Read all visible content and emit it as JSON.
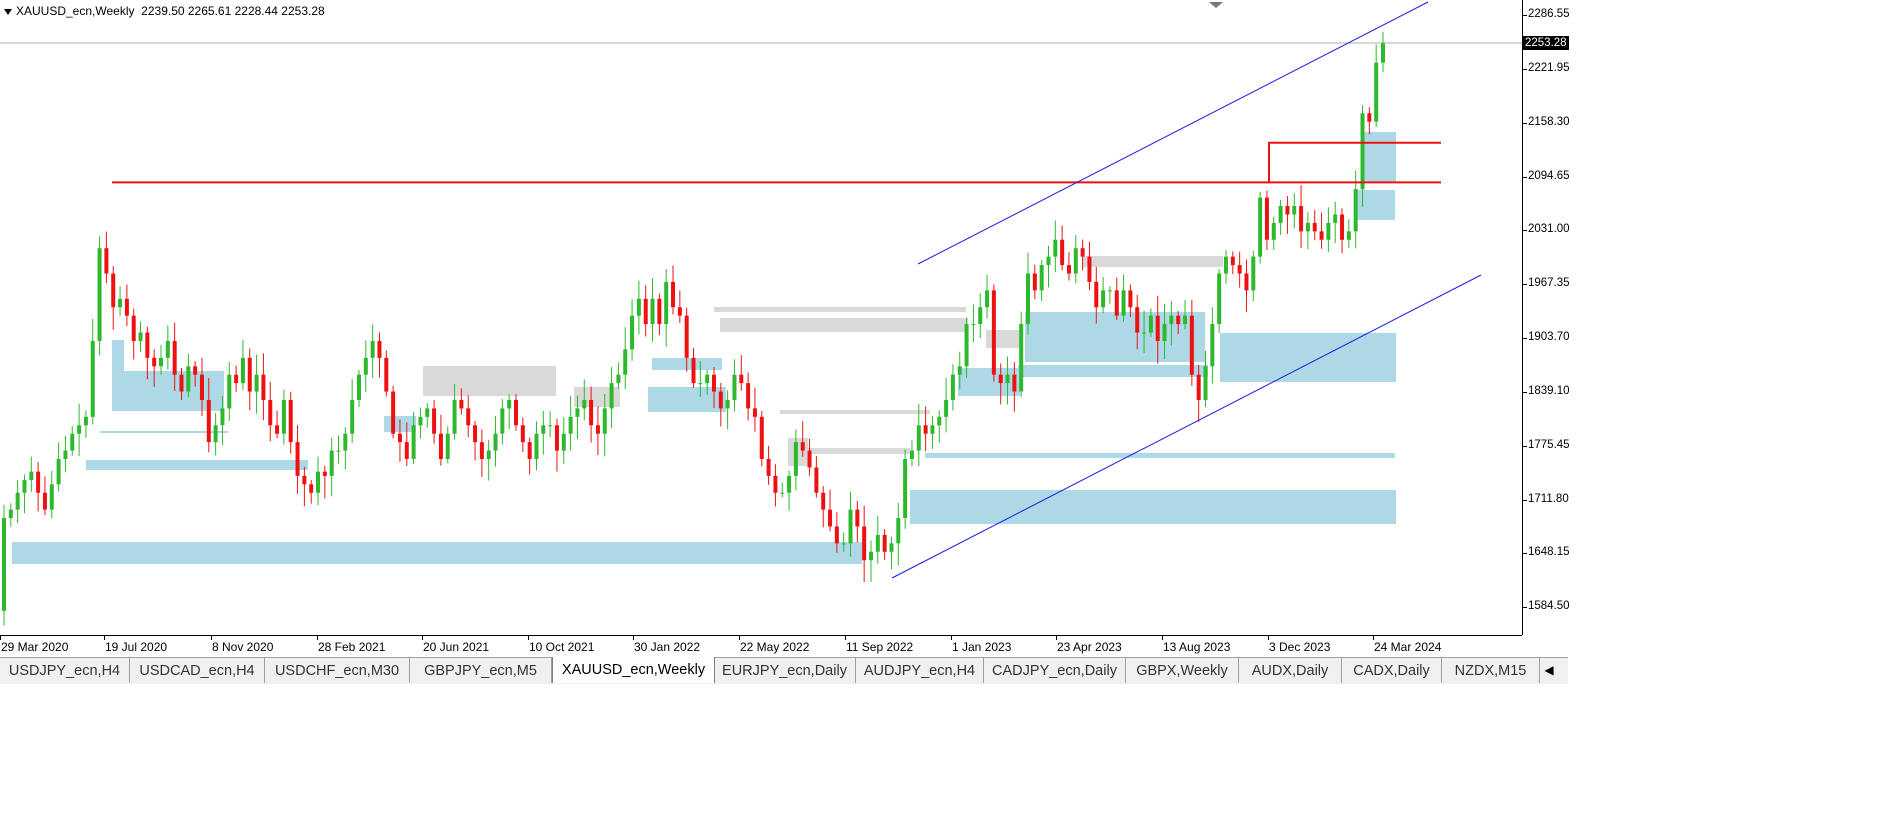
{
  "window": {
    "symbol_title": "XAUUSD_ecn,Weekly",
    "ohlc": "2239.50 2265.61 2228.44 2253.28"
  },
  "price_axis": {
    "labels": [
      "2286.55",
      "2221.95",
      "2158.30",
      "2094.65",
      "2031.00",
      "1967.35",
      "1903.70",
      "1839.10",
      "1775.45",
      "1711.80",
      "1648.15",
      "1584.50"
    ],
    "current_price": "2253.28"
  },
  "time_axis": {
    "labels": [
      "29 Mar 2020",
      "19 Jul 2020",
      "8 Nov 2020",
      "28 Feb 2021",
      "20 Jun 2021",
      "10 Oct 2021",
      "30 Jan 2022",
      "22 May 2022",
      "11 Sep 2022",
      "1 Jan 2023",
      "23 Apr 2023",
      "13 Aug 2023",
      "3 Dec 2023",
      "24 Mar 2024"
    ]
  },
  "tabs": [
    {
      "label": "USDJPY_ecn,H4",
      "active": false
    },
    {
      "label": "USDCAD_ecn,H4",
      "active": false
    },
    {
      "label": "USDCHF_ecn,M30",
      "active": false
    },
    {
      "label": "GBPJPY_ecn,M5",
      "active": false
    },
    {
      "label": "XAUUSD_ecn,Weekly",
      "active": true
    },
    {
      "label": "EURJPY_ecn,Daily",
      "active": false
    },
    {
      "label": "AUDJPY_ecn,H4",
      "active": false
    },
    {
      "label": "CADJPY_ecn,Daily",
      "active": false
    },
    {
      "label": "GBPX,Weekly",
      "active": false
    },
    {
      "label": "AUDX,Daily",
      "active": false
    },
    {
      "label": "CADX,Daily",
      "active": false
    },
    {
      "label": "NZDX,M15",
      "active": false
    }
  ],
  "colors": {
    "bull": "#2db82d",
    "bear": "#ee1111",
    "zone_blue": "#add8e6",
    "zone_gray": "#d9d9d9",
    "resistance": "#ee1111",
    "channel": "#1a1ae6"
  },
  "chart_data": {
    "type": "candlestick",
    "symbol": "XAUUSD_ecn",
    "timeframe": "Weekly",
    "ylim": [
      1560,
      2300
    ],
    "x_range": [
      "29 Mar 2020",
      "24 Mar 2024"
    ],
    "horizontal_levels": [
      2088,
      2135
    ],
    "close_series": [
      1690,
      1700,
      1720,
      1735,
      1745,
      1720,
      1700,
      1730,
      1760,
      1770,
      1790,
      1800,
      1810,
      1900,
      2010,
      1980,
      1940,
      1950,
      1930,
      1900,
      1910,
      1880,
      1870,
      1880,
      1900,
      1860,
      1840,
      1870,
      1860,
      1830,
      1780,
      1800,
      1820,
      1860,
      1850,
      1880,
      1840,
      1860,
      1830,
      1800,
      1790,
      1830,
      1780,
      1740,
      1730,
      1720,
      1745,
      1740,
      1770,
      1770,
      1790,
      1830,
      1860,
      1880,
      1900,
      1880,
      1840,
      1790,
      1780,
      1760,
      1800,
      1810,
      1820,
      1790,
      1760,
      1790,
      1830,
      1820,
      1800,
      1780,
      1760,
      1770,
      1790,
      1820,
      1830,
      1800,
      1780,
      1760,
      1790,
      1800,
      1800,
      1770,
      1790,
      1810,
      1820,
      1830,
      1800,
      1790,
      1820,
      1850,
      1860,
      1890,
      1930,
      1950,
      1920,
      1950,
      1920,
      1970,
      1940,
      1930,
      1880,
      1850,
      1850,
      1860,
      1840,
      1820,
      1830,
      1860,
      1850,
      1820,
      1810,
      1760,
      1740,
      1720,
      1720,
      1740,
      1780,
      1770,
      1750,
      1720,
      1700,
      1680,
      1660,
      1660,
      1700,
      1680,
      1640,
      1650,
      1670,
      1650,
      1660,
      1690,
      1760,
      1770,
      1800,
      1790,
      1800,
      1810,
      1830,
      1860,
      1870,
      1920,
      1920,
      1940,
      1960,
      1860,
      1850,
      1860,
      1840,
      1920,
      1980,
      1960,
      1990,
      2000,
      2020,
      1990,
      1980,
      2010,
      2000,
      1970,
      1940,
      1960,
      1960,
      1930,
      1960,
      1940,
      1910,
      1910,
      1930,
      1900,
      1920,
      1930,
      1920,
      1930,
      1860,
      1830,
      1870,
      1920,
      1980,
      2000,
      1990,
      1980,
      1960,
      2000,
      2070,
      2020,
      2040,
      2060,
      2050,
      2060,
      2030,
      2040,
      2030,
      2020,
      2040,
      2050,
      2020,
      2030,
      2080,
      2170,
      2160,
      2230,
      2253
    ]
  }
}
